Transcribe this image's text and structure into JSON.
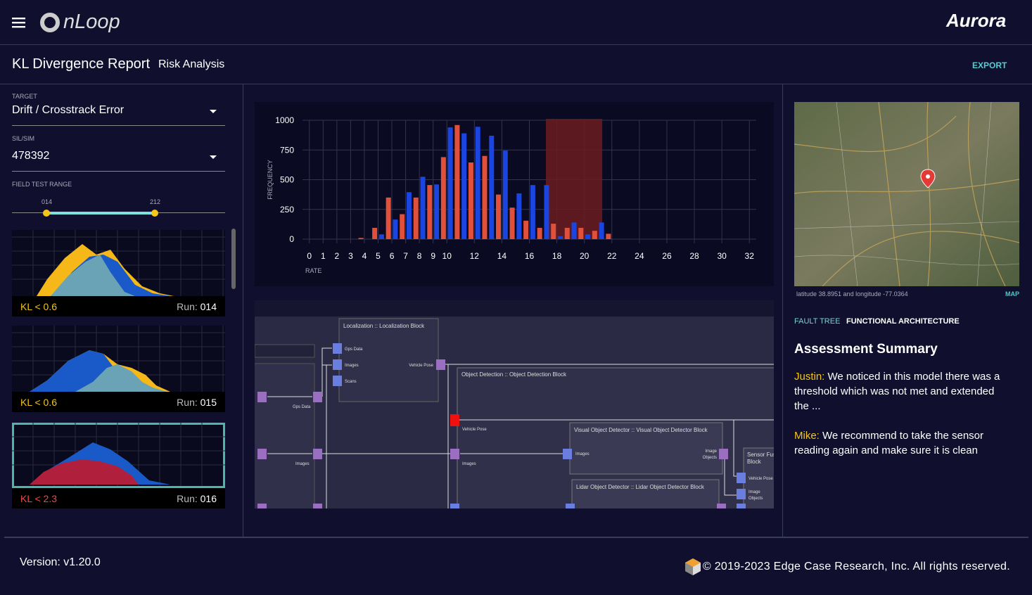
{
  "header": {
    "logo": "nLoop",
    "brand": "Aurora"
  },
  "toolbar": {
    "title": "KL Divergence Report",
    "subtitle": "Risk Analysis",
    "action": "EXPORT"
  },
  "sidebar": {
    "fields": [
      {
        "label": "TARGET",
        "value": "Drift / Crosstrack Error"
      },
      {
        "label": "SIL/SIM",
        "value": "478392"
      }
    ],
    "range": {
      "label": "FIELD TEST RANGE",
      "start": "014",
      "end": "212"
    },
    "runs": [
      {
        "kl": "KL < 0.6",
        "run_label": "Run:",
        "run": "014"
      },
      {
        "kl": "KL < 0.6",
        "run_label": "Run:",
        "run": "015"
      },
      {
        "kl": "KL < 2.3",
        "run_label": "Run:",
        "run": "016"
      }
    ]
  },
  "histogram": {
    "type": "bar",
    "y_label": "FREQUENCY",
    "x_label": "RATE",
    "xlim": [
      -0.5,
      32.5
    ],
    "ylim": [
      0,
      1000
    ],
    "xticks": [
      0,
      1,
      2,
      3,
      4,
      5,
      6,
      7,
      8,
      9,
      10,
      12,
      14,
      16,
      18,
      20,
      22,
      24,
      26,
      28,
      30,
      32
    ],
    "yticks": [
      0,
      250,
      500,
      750,
      1000
    ],
    "grid": true,
    "highlight": [
      17.2,
      21.3
    ],
    "highlight_color": "#6b1c1e",
    "series": [
      {
        "color": "#e0503a",
        "x": [
          3.75,
          4.75,
          5.75,
          6.75,
          7.75,
          8.75,
          9.75,
          10.75,
          11.75,
          12.75,
          13.75,
          14.75,
          15.75,
          16.75,
          17.75,
          18.75,
          19.75,
          20.75,
          21.75
        ],
        "values": [
          10,
          95,
          350,
          210,
          350,
          455,
          690,
          960,
          645,
          700,
          375,
          265,
          155,
          95,
          130,
          95,
          95,
          70,
          45
        ]
      },
      {
        "color": "#1a45e0",
        "x": [
          5.25,
          6.25,
          7.25,
          8.25,
          9.25,
          10.25,
          11.25,
          12.25,
          13.25,
          14.25,
          15.25,
          16.25,
          17.25,
          18.25,
          19.25,
          20.25,
          21.25
        ],
        "values": [
          40,
          165,
          395,
          525,
          460,
          940,
          890,
          945,
          870,
          745,
          385,
          455,
          455,
          25,
          140,
          40,
          140
        ]
      }
    ]
  },
  "diagram": {
    "labels": [
      "Localization :: Localization Block",
      "Gps Data",
      "Images",
      "Scans",
      "Vehicle Pose",
      "Object Detection :: Object Detection Block",
      "Gps Data",
      "Images",
      "Vehicle Pose",
      "Images",
      "Visual Object Detector :: Visual Object Detector Block",
      "Images",
      "Image",
      "Objects",
      "Lidar Object Detector :: Lidar Object Detector Block",
      "Sensor Fus",
      "Block",
      "Vehicle Pose",
      "Image",
      "Objects"
    ]
  },
  "panel": {
    "map_caption": "latitude 38.8951 and longitude -77.0364",
    "map_link": "MAP",
    "tabs": [
      "FAULT TREE",
      "FUNCTIONAL ARCHITECTURE"
    ],
    "heading": "Assessment Summary",
    "comments": [
      {
        "author": "Justin:",
        "text": "We noticed in this model there was a threshold which was not met and extended the ..."
      },
      {
        "author": "Mike:",
        "text": "We recommend to take the sensor reading again and make sure it is clean"
      }
    ]
  },
  "footer": {
    "version": "Version: v1.20.0",
    "copyright": "© 2019-2023 Edge Case Research, Inc. All rights reserved."
  }
}
